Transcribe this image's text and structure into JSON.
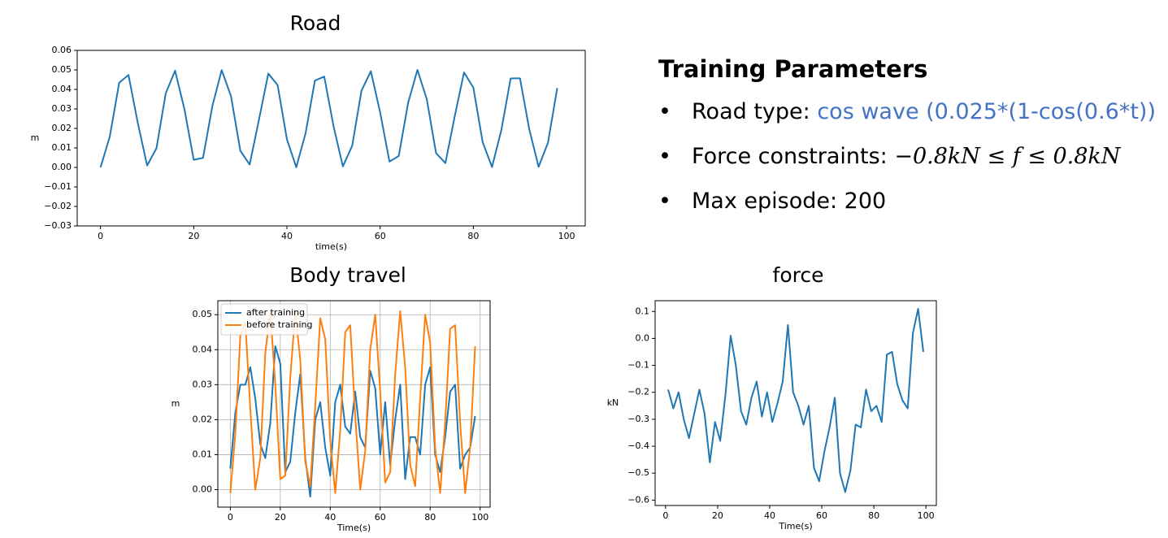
{
  "chart_data": [
    {
      "type": "line",
      "title": "Road",
      "xlabel": "time(s)",
      "ylabel": "m",
      "color": "#1f77b4",
      "x": [
        0,
        2,
        4,
        6,
        8,
        10,
        12,
        14,
        16,
        18,
        20,
        22,
        24,
        26,
        28,
        30,
        32,
        34,
        36,
        38,
        40,
        42,
        44,
        46,
        48,
        50,
        52,
        54,
        56,
        58,
        60,
        62,
        64,
        66,
        68,
        70,
        72,
        74,
        76,
        78,
        80,
        82,
        84,
        86,
        88,
        90,
        92,
        94,
        96,
        98
      ],
      "values": [
        0,
        0.0159,
        0.0434,
        0.0474,
        0.0228,
        0.001,
        0.0098,
        0.038,
        0.0496,
        0.0299,
        0.0039,
        0.0049,
        0.0315,
        0.0499,
        0.0365,
        0.0085,
        0.0015,
        0.0245,
        0.0481,
        0.0422,
        0.0144,
        0.0001,
        0.0175,
        0.0445,
        0.0466,
        0.0211,
        0.0005,
        0.0111,
        0.0394,
        0.0493,
        0.0282,
        0.003,
        0.0059,
        0.0331,
        0.05,
        0.035,
        0.0073,
        0.0022,
        0.0262,
        0.0487,
        0.0409,
        0.0129,
        0.0002,
        0.0191,
        0.0456,
        0.0457,
        0.0195,
        0.0003,
        0.0126,
        0.0407
      ],
      "xlim": [
        -5,
        104
      ],
      "ylim": [
        -0.03,
        0.06
      ],
      "xticks": [
        0,
        20,
        40,
        60,
        80,
        100
      ],
      "yticks": [
        {
          "value": -0.03,
          "label": "−0.03"
        },
        {
          "value": -0.02,
          "label": "−0.02"
        },
        {
          "value": -0.01,
          "label": "−0.01"
        },
        {
          "value": 0,
          "label": "0.00"
        },
        {
          "value": 0.01,
          "label": "0.01"
        },
        {
          "value": 0.02,
          "label": "0.02"
        },
        {
          "value": 0.03,
          "label": "0.03"
        },
        {
          "value": 0.04,
          "label": "0.04"
        },
        {
          "value": 0.05,
          "label": "0.05"
        },
        {
          "value": 0.06,
          "label": "0.06"
        }
      ],
      "grid": false
    },
    {
      "type": "line",
      "title": "Body travel",
      "xlabel": "Time(s)",
      "ylabel": "m",
      "grid": true,
      "legend": "upper left",
      "x": [
        0,
        2,
        4,
        6,
        8,
        10,
        12,
        14,
        16,
        18,
        20,
        22,
        24,
        26,
        28,
        30,
        32,
        34,
        36,
        38,
        40,
        42,
        44,
        46,
        48,
        50,
        52,
        54,
        56,
        58,
        60,
        62,
        64,
        66,
        68,
        70,
        72,
        74,
        76,
        78,
        80,
        82,
        84,
        86,
        88,
        90,
        92,
        94,
        96,
        98
      ],
      "series": [
        {
          "name": "after training",
          "color": "#1f77b4",
          "values": [
            0.006,
            0.022,
            0.03,
            0.03,
            0.035,
            0.026,
            0.013,
            0.009,
            0.019,
            0.041,
            0.036,
            0.005,
            0.008,
            0.022,
            0.033,
            0.009,
            -0.002,
            0.02,
            0.025,
            0.012,
            0.004,
            0.025,
            0.03,
            0.018,
            0.016,
            0.028,
            0.015,
            0.012,
            0.034,
            0.029,
            0.01,
            0.025,
            0.007,
            0.02,
            0.03,
            0.003,
            0.015,
            0.015,
            0.01,
            0.03,
            0.035,
            0.01,
            0.005,
            0.015,
            0.028,
            0.03,
            0.006,
            0.01,
            0.012,
            0.021
          ]
        },
        {
          "name": "before training",
          "color": "#ff7f0e",
          "values": [
            -0.001,
            0.016,
            0.044,
            0.048,
            0.023,
            0,
            0.009,
            0.039,
            0.051,
            0.03,
            0.003,
            0.004,
            0.032,
            0.051,
            0.037,
            0.008,
            0.001,
            0.024,
            0.049,
            0.043,
            0.014,
            -0.001,
            0.017,
            0.045,
            0.047,
            0.021,
            0,
            0.011,
            0.04,
            0.05,
            0.028,
            0.002,
            0.005,
            0.033,
            0.051,
            0.035,
            0.007,
            0.001,
            0.026,
            0.05,
            0.042,
            0.012,
            -0.001,
            0.019,
            0.046,
            0.047,
            0.019,
            -0.001,
            0.012,
            0.041
          ]
        }
      ],
      "xlim": [
        -5,
        104
      ],
      "ylim": [
        -0.005,
        0.054
      ],
      "xticks": [
        0,
        20,
        40,
        60,
        80,
        100
      ],
      "yticks": [
        {
          "value": 0,
          "label": "0.00"
        },
        {
          "value": 0.01,
          "label": "0.01"
        },
        {
          "value": 0.02,
          "label": "0.02"
        },
        {
          "value": 0.03,
          "label": "0.03"
        },
        {
          "value": 0.04,
          "label": "0.04"
        },
        {
          "value": 0.05,
          "label": "0.05"
        }
      ]
    },
    {
      "type": "line",
      "title": "force",
      "xlabel": "Time(s)",
      "ylabel": "kN",
      "color": "#1f77b4",
      "grid": false,
      "x": [
        1,
        3,
        5,
        7,
        9,
        11,
        13,
        15,
        17,
        19,
        21,
        23,
        25,
        27,
        29,
        31,
        33,
        35,
        37,
        39,
        41,
        43,
        45,
        47,
        49,
        51,
        53,
        55,
        57,
        59,
        61,
        63,
        65,
        67,
        69,
        71,
        73,
        75,
        77,
        79,
        81,
        83,
        85,
        87,
        89,
        91,
        93,
        95,
        97,
        99
      ],
      "values": [
        -0.19,
        -0.26,
        -0.2,
        -0.3,
        -0.37,
        -0.28,
        -0.19,
        -0.28,
        -0.46,
        -0.31,
        -0.38,
        -0.21,
        0.01,
        -0.1,
        -0.27,
        -0.32,
        -0.22,
        -0.16,
        -0.29,
        -0.2,
        -0.31,
        -0.24,
        -0.16,
        0.05,
        -0.2,
        -0.25,
        -0.32,
        -0.25,
        -0.48,
        -0.53,
        -0.42,
        -0.33,
        -0.22,
        -0.5,
        -0.57,
        -0.49,
        -0.32,
        -0.33,
        -0.19,
        -0.27,
        -0.25,
        -0.31,
        -0.06,
        -0.05,
        -0.17,
        -0.23,
        -0.26,
        0.02,
        0.11,
        -0.05
      ],
      "xlim": [
        -4,
        104
      ],
      "ylim": [
        -0.62,
        0.14
      ],
      "xticks": [
        0,
        20,
        40,
        60,
        80,
        100
      ],
      "yticks": [
        {
          "value": -0.6,
          "label": "−0.6"
        },
        {
          "value": -0.5,
          "label": "−0.5"
        },
        {
          "value": -0.4,
          "label": "−0.4"
        },
        {
          "value": -0.3,
          "label": "−0.3"
        },
        {
          "value": -0.2,
          "label": "−0.2"
        },
        {
          "value": -0.1,
          "label": "−0.1"
        },
        {
          "value": 0,
          "label": "0.0"
        },
        0.1
      ]
    }
  ],
  "parameters": {
    "title": "Training Parameters",
    "items": [
      {
        "label": "Road type: ",
        "value": "cos wave (0.025*(1-cos(0.6*t))"
      },
      {
        "label": "Force constraints: ",
        "value": "−0.8kN ≤ f ≤ 0.8kN"
      },
      {
        "label": "Max episode: 200"
      }
    ]
  }
}
